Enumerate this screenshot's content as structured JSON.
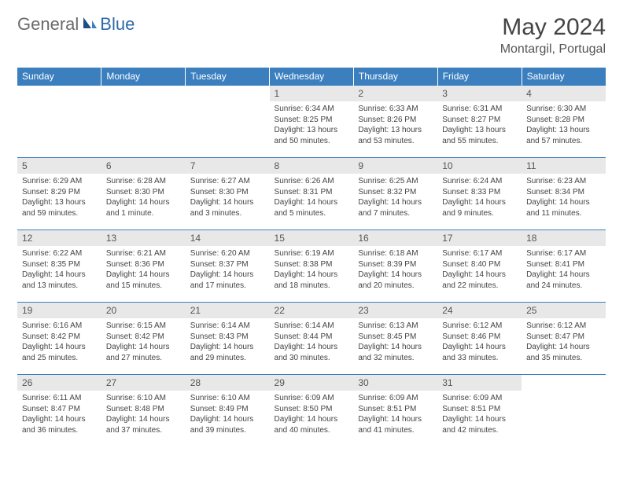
{
  "brand": {
    "part1": "General",
    "part2": "Blue"
  },
  "title": "May 2024",
  "location": "Montargil, Portugal",
  "colors": {
    "header_bg": "#3b7fbf",
    "header_text": "#ffffff",
    "daynum_bg": "#e8e8e8",
    "border": "#3b7fbf",
    "logo_gray": "#6b6b6b",
    "logo_blue": "#2f6aa8"
  },
  "weekdays": [
    "Sunday",
    "Monday",
    "Tuesday",
    "Wednesday",
    "Thursday",
    "Friday",
    "Saturday"
  ],
  "weeks": [
    [
      {
        "n": "",
        "sr": "",
        "ss": "",
        "dl": ""
      },
      {
        "n": "",
        "sr": "",
        "ss": "",
        "dl": ""
      },
      {
        "n": "",
        "sr": "",
        "ss": "",
        "dl": ""
      },
      {
        "n": "1",
        "sr": "Sunrise: 6:34 AM",
        "ss": "Sunset: 8:25 PM",
        "dl": "Daylight: 13 hours and 50 minutes."
      },
      {
        "n": "2",
        "sr": "Sunrise: 6:33 AM",
        "ss": "Sunset: 8:26 PM",
        "dl": "Daylight: 13 hours and 53 minutes."
      },
      {
        "n": "3",
        "sr": "Sunrise: 6:31 AM",
        "ss": "Sunset: 8:27 PM",
        "dl": "Daylight: 13 hours and 55 minutes."
      },
      {
        "n": "4",
        "sr": "Sunrise: 6:30 AM",
        "ss": "Sunset: 8:28 PM",
        "dl": "Daylight: 13 hours and 57 minutes."
      }
    ],
    [
      {
        "n": "5",
        "sr": "Sunrise: 6:29 AM",
        "ss": "Sunset: 8:29 PM",
        "dl": "Daylight: 13 hours and 59 minutes."
      },
      {
        "n": "6",
        "sr": "Sunrise: 6:28 AM",
        "ss": "Sunset: 8:30 PM",
        "dl": "Daylight: 14 hours and 1 minute."
      },
      {
        "n": "7",
        "sr": "Sunrise: 6:27 AM",
        "ss": "Sunset: 8:30 PM",
        "dl": "Daylight: 14 hours and 3 minutes."
      },
      {
        "n": "8",
        "sr": "Sunrise: 6:26 AM",
        "ss": "Sunset: 8:31 PM",
        "dl": "Daylight: 14 hours and 5 minutes."
      },
      {
        "n": "9",
        "sr": "Sunrise: 6:25 AM",
        "ss": "Sunset: 8:32 PM",
        "dl": "Daylight: 14 hours and 7 minutes."
      },
      {
        "n": "10",
        "sr": "Sunrise: 6:24 AM",
        "ss": "Sunset: 8:33 PM",
        "dl": "Daylight: 14 hours and 9 minutes."
      },
      {
        "n": "11",
        "sr": "Sunrise: 6:23 AM",
        "ss": "Sunset: 8:34 PM",
        "dl": "Daylight: 14 hours and 11 minutes."
      }
    ],
    [
      {
        "n": "12",
        "sr": "Sunrise: 6:22 AM",
        "ss": "Sunset: 8:35 PM",
        "dl": "Daylight: 14 hours and 13 minutes."
      },
      {
        "n": "13",
        "sr": "Sunrise: 6:21 AM",
        "ss": "Sunset: 8:36 PM",
        "dl": "Daylight: 14 hours and 15 minutes."
      },
      {
        "n": "14",
        "sr": "Sunrise: 6:20 AM",
        "ss": "Sunset: 8:37 PM",
        "dl": "Daylight: 14 hours and 17 minutes."
      },
      {
        "n": "15",
        "sr": "Sunrise: 6:19 AM",
        "ss": "Sunset: 8:38 PM",
        "dl": "Daylight: 14 hours and 18 minutes."
      },
      {
        "n": "16",
        "sr": "Sunrise: 6:18 AM",
        "ss": "Sunset: 8:39 PM",
        "dl": "Daylight: 14 hours and 20 minutes."
      },
      {
        "n": "17",
        "sr": "Sunrise: 6:17 AM",
        "ss": "Sunset: 8:40 PM",
        "dl": "Daylight: 14 hours and 22 minutes."
      },
      {
        "n": "18",
        "sr": "Sunrise: 6:17 AM",
        "ss": "Sunset: 8:41 PM",
        "dl": "Daylight: 14 hours and 24 minutes."
      }
    ],
    [
      {
        "n": "19",
        "sr": "Sunrise: 6:16 AM",
        "ss": "Sunset: 8:42 PM",
        "dl": "Daylight: 14 hours and 25 minutes."
      },
      {
        "n": "20",
        "sr": "Sunrise: 6:15 AM",
        "ss": "Sunset: 8:42 PM",
        "dl": "Daylight: 14 hours and 27 minutes."
      },
      {
        "n": "21",
        "sr": "Sunrise: 6:14 AM",
        "ss": "Sunset: 8:43 PM",
        "dl": "Daylight: 14 hours and 29 minutes."
      },
      {
        "n": "22",
        "sr": "Sunrise: 6:14 AM",
        "ss": "Sunset: 8:44 PM",
        "dl": "Daylight: 14 hours and 30 minutes."
      },
      {
        "n": "23",
        "sr": "Sunrise: 6:13 AM",
        "ss": "Sunset: 8:45 PM",
        "dl": "Daylight: 14 hours and 32 minutes."
      },
      {
        "n": "24",
        "sr": "Sunrise: 6:12 AM",
        "ss": "Sunset: 8:46 PM",
        "dl": "Daylight: 14 hours and 33 minutes."
      },
      {
        "n": "25",
        "sr": "Sunrise: 6:12 AM",
        "ss": "Sunset: 8:47 PM",
        "dl": "Daylight: 14 hours and 35 minutes."
      }
    ],
    [
      {
        "n": "26",
        "sr": "Sunrise: 6:11 AM",
        "ss": "Sunset: 8:47 PM",
        "dl": "Daylight: 14 hours and 36 minutes."
      },
      {
        "n": "27",
        "sr": "Sunrise: 6:10 AM",
        "ss": "Sunset: 8:48 PM",
        "dl": "Daylight: 14 hours and 37 minutes."
      },
      {
        "n": "28",
        "sr": "Sunrise: 6:10 AM",
        "ss": "Sunset: 8:49 PM",
        "dl": "Daylight: 14 hours and 39 minutes."
      },
      {
        "n": "29",
        "sr": "Sunrise: 6:09 AM",
        "ss": "Sunset: 8:50 PM",
        "dl": "Daylight: 14 hours and 40 minutes."
      },
      {
        "n": "30",
        "sr": "Sunrise: 6:09 AM",
        "ss": "Sunset: 8:51 PM",
        "dl": "Daylight: 14 hours and 41 minutes."
      },
      {
        "n": "31",
        "sr": "Sunrise: 6:09 AM",
        "ss": "Sunset: 8:51 PM",
        "dl": "Daylight: 14 hours and 42 minutes."
      },
      {
        "n": "",
        "sr": "",
        "ss": "",
        "dl": ""
      }
    ]
  ]
}
